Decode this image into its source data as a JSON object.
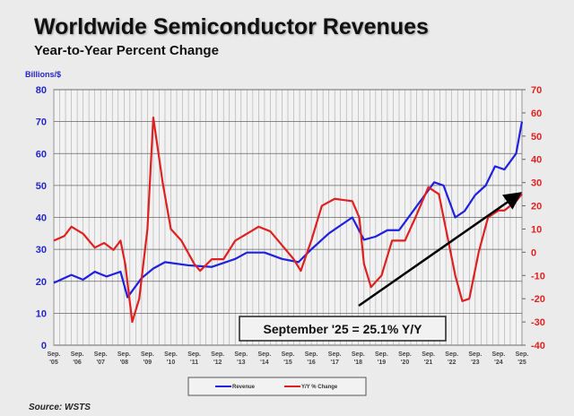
{
  "chart_data": {
    "type": "line",
    "title": "Worldwide Semiconductor Revenues",
    "subtitle": "Year-to-Year Percent Change",
    "ylabel": "Billions/$",
    "ylim": [
      0,
      80
    ],
    "y2lim": [
      -40,
      70
    ],
    "yticks": [
      "0",
      "10",
      "20",
      "30",
      "40",
      "50",
      "60",
      "70",
      "80"
    ],
    "y2ticks": [
      "-40",
      "-30",
      "-20",
      "-10",
      "0",
      "10",
      "20",
      "30",
      "40",
      "50",
      "60",
      "70"
    ],
    "xticks": [
      [
        "Sep.",
        "'05"
      ],
      [
        "Sep.",
        "'06"
      ],
      [
        "Sep.",
        "'07"
      ],
      [
        "Sep.",
        "'08"
      ],
      [
        "Sep.",
        "'09"
      ],
      [
        "Sep.",
        "'10"
      ],
      [
        "Sep.",
        "'11"
      ],
      [
        "Sep.",
        "'12"
      ],
      [
        "Sep.",
        "'13"
      ],
      [
        "Sep.",
        "'14"
      ],
      [
        "Sep.",
        "'15"
      ],
      [
        "Sep.",
        "'16"
      ],
      [
        "Sep.",
        "'17"
      ],
      [
        "Sep.",
        "'18"
      ],
      [
        "Sep.",
        "'19"
      ],
      [
        "Sep.",
        "'20"
      ],
      [
        "Sep.",
        "'21"
      ],
      [
        "Sep.",
        "'22"
      ],
      [
        "Sep.",
        "'23"
      ],
      [
        "Sep.",
        "'24"
      ],
      [
        "Sep.",
        "'25"
      ]
    ],
    "grid": true,
    "legend_position": "bottom",
    "annotation": "September '25 = 25.1% Y/Y",
    "series": [
      {
        "name": "Revenue",
        "axis": "left",
        "color": "#2020e0",
        "x": [
          2005.75,
          2006.5,
          2007,
          2007.5,
          2008,
          2008.6,
          2008.9,
          2009.5,
          2010,
          2010.5,
          2011.5,
          2012.5,
          2013.5,
          2014,
          2014.75,
          2015.5,
          2016.2,
          2016.75,
          2017.5,
          2018.5,
          2019,
          2019.5,
          2020,
          2020.5,
          2021,
          2021.5,
          2022,
          2022.4,
          2022.9,
          2023.3,
          2023.75,
          2024.2,
          2024.6,
          2025,
          2025.5,
          2025.75
        ],
        "values": [
          19.5,
          22,
          20.5,
          23,
          21.5,
          23,
          15,
          21,
          24,
          26,
          25,
          24.5,
          27,
          29,
          29,
          27,
          26,
          30,
          35,
          40,
          33,
          34,
          36,
          36,
          41,
          46,
          51,
          50,
          40,
          42,
          47,
          50,
          56,
          55,
          60,
          70
        ]
      },
      {
        "name": "Y/Y % Change",
        "axis": "right",
        "color": "#e02020",
        "x": [
          2005.75,
          2006.2,
          2006.5,
          2007,
          2007.5,
          2007.9,
          2008.3,
          2008.6,
          2008.8,
          2009.1,
          2009.4,
          2009.75,
          2010,
          2010.4,
          2010.75,
          2011.2,
          2011.75,
          2012,
          2012.5,
          2013,
          2013.5,
          2014,
          2014.5,
          2015,
          2015.5,
          2016,
          2016.3,
          2016.75,
          2017.2,
          2017.75,
          2018.5,
          2018.8,
          2019,
          2019.3,
          2019.75,
          2020.2,
          2020.75,
          2021.2,
          2021.75,
          2022.2,
          2022.5,
          2022.9,
          2023.2,
          2023.5,
          2023.9,
          2024.3,
          2024.75,
          2025,
          2025.5,
          2025.75
        ],
        "values": [
          5,
          7,
          11,
          8,
          2,
          4,
          1,
          5,
          -5,
          -30,
          -20,
          10,
          58,
          30,
          10,
          5,
          -5,
          -8,
          -3,
          -3,
          5,
          8,
          11,
          9,
          3,
          -3,
          -8,
          5,
          20,
          23,
          22,
          15,
          -5,
          -15,
          -10,
          5,
          5,
          15,
          28,
          25,
          10,
          -10,
          -21,
          -20,
          0,
          15,
          18,
          18,
          22,
          25.1
        ]
      }
    ]
  },
  "source": "Source: WSTS"
}
